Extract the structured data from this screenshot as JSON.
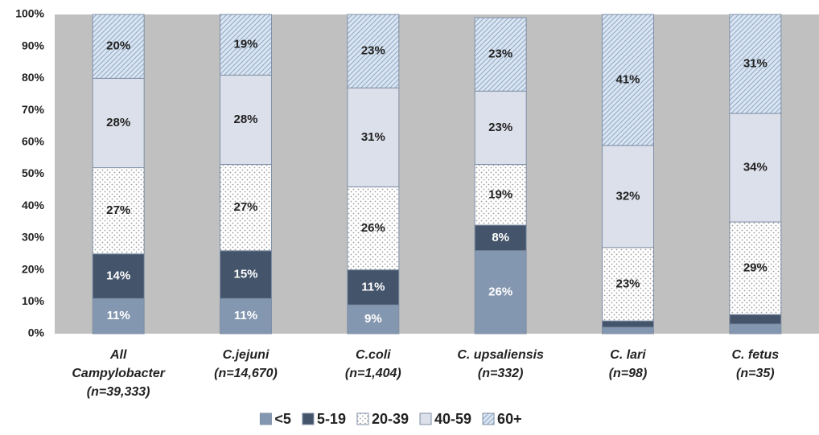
{
  "chart_data": {
    "type": "stacked_bar",
    "categories": [
      [
        "All",
        "Campylobacter",
        "(n=39,333)"
      ],
      [
        "C.jejuni",
        "(n=14,670)"
      ],
      [
        "C.coli",
        "(n=1,404)"
      ],
      [
        "C. upsaliensis",
        "(n=332)"
      ],
      [
        "C. lari",
        "(n=98)"
      ],
      [
        "C. fetus",
        "(n=35)"
      ]
    ],
    "series": [
      {
        "name": "<5",
        "color": "#8497b0",
        "pattern": "solid",
        "values": [
          11,
          11,
          9,
          26,
          2,
          3
        ],
        "value_labels": [
          "11%",
          "11%",
          "9%",
          "26%",
          null,
          null
        ]
      },
      {
        "name": "5-19",
        "color": "#44546a",
        "pattern": "solid",
        "values": [
          14,
          15,
          11,
          8,
          2,
          3
        ],
        "value_labels": [
          "14%",
          "15%",
          "11%",
          "8%",
          null,
          null
        ]
      },
      {
        "name": "20-39",
        "color": "#ffffff",
        "pattern": "dots",
        "values": [
          27,
          27,
          26,
          19,
          23,
          29
        ],
        "value_labels": [
          "27%",
          "27%",
          "26%",
          "19%",
          "23%",
          "29%"
        ]
      },
      {
        "name": "40-59",
        "color": "#dce0ea",
        "pattern": "solid",
        "values": [
          28,
          28,
          31,
          23,
          32,
          34
        ],
        "value_labels": [
          "28%",
          "28%",
          "31%",
          "23%",
          "32%",
          "34%"
        ]
      },
      {
        "name": "60+",
        "color": "#dbe5f1",
        "pattern": "hatch",
        "values": [
          20,
          19,
          23,
          23,
          41,
          31
        ],
        "value_labels": [
          "20%",
          "19%",
          "23%",
          "23%",
          "41%",
          "31%"
        ]
      }
    ],
    "ylim": [
      0,
      100
    ],
    "yticks": [
      {
        "value": 0,
        "label": "0%"
      },
      {
        "value": 10,
        "label": "10%"
      },
      {
        "value": 20,
        "label": "20%"
      },
      {
        "value": 30,
        "label": "30%"
      },
      {
        "value": 40,
        "label": "40%"
      },
      {
        "value": 50,
        "label": "50%"
      },
      {
        "value": 60,
        "label": "60%"
      },
      {
        "value": 70,
        "label": "70%"
      },
      {
        "value": 80,
        "label": "80%"
      },
      {
        "value": 90,
        "label": "90%"
      },
      {
        "value": 100,
        "label": "100%"
      }
    ],
    "legend": "bottom"
  }
}
